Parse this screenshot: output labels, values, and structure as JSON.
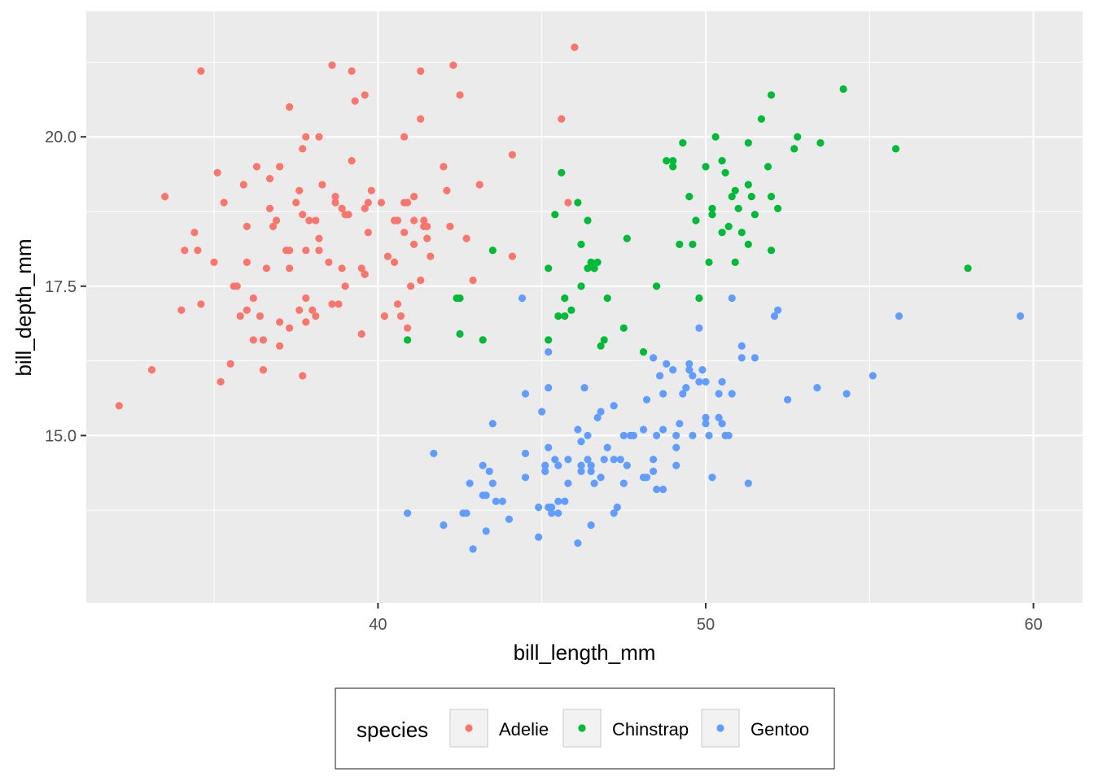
{
  "chart_data": {
    "type": "scatter",
    "xlabel": "bill_length_mm",
    "ylabel": "bill_depth_mm",
    "xlim": [
      31.1,
      61.5
    ],
    "ylim": [
      12.2,
      22.1
    ],
    "x_ticks": [
      40,
      50,
      60
    ],
    "x_tick_labels": [
      "40",
      "50",
      "60"
    ],
    "y_ticks": [
      15,
      17.5,
      20
    ],
    "y_tick_labels": [
      "15.0",
      "17.5",
      "20.0"
    ],
    "grid": true,
    "panel_background": "#ebebeb",
    "legend": {
      "title": "species",
      "position": "bottom"
    },
    "series": [
      {
        "name": "Adelie",
        "color": "#f8766d",
        "points": [
          [
            32.1,
            15.5
          ],
          [
            33.1,
            16.1
          ],
          [
            33.5,
            19.0
          ],
          [
            34.0,
            17.1
          ],
          [
            34.1,
            18.1
          ],
          [
            34.4,
            18.4
          ],
          [
            34.5,
            18.1
          ],
          [
            34.6,
            21.1
          ],
          [
            34.6,
            17.2
          ],
          [
            35.0,
            17.9
          ],
          [
            35.1,
            19.4
          ],
          [
            35.2,
            15.9
          ],
          [
            35.3,
            18.9
          ],
          [
            35.5,
            16.2
          ],
          [
            35.6,
            17.5
          ],
          [
            35.7,
            17.5
          ],
          [
            35.8,
            17.0
          ],
          [
            35.9,
            19.2
          ],
          [
            36.0,
            18.5
          ],
          [
            36.0,
            17.9
          ],
          [
            36.0,
            17.1
          ],
          [
            36.2,
            16.6
          ],
          [
            36.2,
            17.3
          ],
          [
            36.4,
            17.0
          ],
          [
            36.5,
            16.1
          ],
          [
            36.6,
            17.8
          ],
          [
            36.7,
            18.8
          ],
          [
            36.7,
            19.3
          ],
          [
            36.8,
            18.5
          ],
          [
            36.9,
            18.6
          ],
          [
            37.0,
            19.5
          ],
          [
            37.0,
            16.5
          ],
          [
            37.2,
            18.1
          ],
          [
            37.3,
            17.8
          ],
          [
            37.3,
            16.8
          ],
          [
            37.3,
            20.5
          ],
          [
            37.5,
            18.9
          ],
          [
            37.6,
            19.1
          ],
          [
            37.6,
            17.1
          ],
          [
            37.7,
            18.7
          ],
          [
            37.7,
            19.8
          ],
          [
            37.8,
            18.1
          ],
          [
            37.8,
            17.3
          ],
          [
            37.8,
            20.0
          ],
          [
            37.9,
            18.6
          ],
          [
            38.1,
            18.6
          ],
          [
            38.1,
            17.0
          ],
          [
            38.2,
            20.0
          ],
          [
            38.2,
            18.1
          ],
          [
            38.3,
            19.2
          ],
          [
            38.5,
            17.9
          ],
          [
            38.6,
            21.2
          ],
          [
            38.6,
            17.2
          ],
          [
            38.7,
            19.0
          ],
          [
            38.8,
            17.2
          ],
          [
            38.9,
            18.8
          ],
          [
            39.0,
            17.5
          ],
          [
            39.0,
            18.7
          ],
          [
            39.1,
            18.7
          ],
          [
            39.2,
            19.6
          ],
          [
            39.3,
            20.6
          ],
          [
            39.5,
            16.7
          ],
          [
            39.5,
            17.8
          ],
          [
            39.6,
            17.7
          ],
          [
            39.7,
            18.4
          ],
          [
            39.8,
            19.1
          ],
          [
            40.1,
            18.9
          ],
          [
            40.2,
            17.0
          ],
          [
            40.3,
            18.0
          ],
          [
            40.5,
            17.9
          ],
          [
            40.6,
            18.6
          ],
          [
            40.7,
            17.0
          ],
          [
            40.8,
            18.4
          ],
          [
            40.9,
            18.9
          ],
          [
            41.0,
            17.5
          ],
          [
            41.1,
            18.2
          ],
          [
            41.1,
            19.0
          ],
          [
            41.3,
            20.3
          ],
          [
            41.3,
            17.6
          ],
          [
            41.4,
            18.5
          ],
          [
            41.5,
            18.3
          ],
          [
            41.6,
            18.0
          ],
          [
            42.0,
            19.5
          ],
          [
            42.1,
            19.1
          ],
          [
            42.2,
            18.5
          ],
          [
            42.3,
            21.2
          ],
          [
            42.5,
            20.7
          ],
          [
            42.7,
            18.3
          ],
          [
            42.9,
            17.6
          ],
          [
            43.1,
            19.2
          ],
          [
            44.1,
            19.7
          ],
          [
            44.1,
            18.0
          ],
          [
            45.6,
            20.3
          ],
          [
            45.8,
            18.9
          ],
          [
            46.0,
            21.5
          ],
          [
            37.8,
            16.9
          ],
          [
            36.5,
            16.6
          ],
          [
            39.6,
            18.8
          ],
          [
            40.8,
            18.9
          ],
          [
            38.7,
            18.9
          ],
          [
            40.6,
            17.2
          ],
          [
            39.6,
            17.7
          ],
          [
            41.4,
            18.6
          ],
          [
            39.7,
            18.9
          ],
          [
            36.3,
            19.5
          ],
          [
            41.5,
            18.5
          ],
          [
            37.7,
            16.0
          ],
          [
            39.6,
            20.7
          ],
          [
            38.0,
            17.1
          ],
          [
            39.2,
            21.1
          ],
          [
            38.2,
            18.3
          ],
          [
            40.5,
            18.6
          ],
          [
            41.1,
            18.6
          ],
          [
            37.0,
            16.9
          ],
          [
            40.9,
            16.8
          ],
          [
            40.8,
            20.0
          ],
          [
            41.3,
            21.1
          ],
          [
            37.3,
            18.1
          ],
          [
            38.9,
            17.8
          ]
        ]
      },
      {
        "name": "Chinstrap",
        "color": "#00ba38",
        "points": [
          [
            40.9,
            16.6
          ],
          [
            42.4,
            17.3
          ],
          [
            42.5,
            17.3
          ],
          [
            42.5,
            16.7
          ],
          [
            43.2,
            16.6
          ],
          [
            43.5,
            18.1
          ],
          [
            45.2,
            17.8
          ],
          [
            45.2,
            16.6
          ],
          [
            45.4,
            18.7
          ],
          [
            45.5,
            17.0
          ],
          [
            45.6,
            19.4
          ],
          [
            45.7,
            17.3
          ],
          [
            45.7,
            17.0
          ],
          [
            45.9,
            17.1
          ],
          [
            46.1,
            18.9
          ],
          [
            46.2,
            17.5
          ],
          [
            46.2,
            18.2
          ],
          [
            46.4,
            18.6
          ],
          [
            46.4,
            17.8
          ],
          [
            46.5,
            17.9
          ],
          [
            46.6,
            17.8
          ],
          [
            46.7,
            17.9
          ],
          [
            46.8,
            16.5
          ],
          [
            46.9,
            16.6
          ],
          [
            47.0,
            17.3
          ],
          [
            47.5,
            16.8
          ],
          [
            47.6,
            18.3
          ],
          [
            48.1,
            16.4
          ],
          [
            48.5,
            17.5
          ],
          [
            48.8,
            19.6
          ],
          [
            49.0,
            19.5
          ],
          [
            49.2,
            18.2
          ],
          [
            49.3,
            19.9
          ],
          [
            49.5,
            19.0
          ],
          [
            49.6,
            18.2
          ],
          [
            49.7,
            18.6
          ],
          [
            49.8,
            17.3
          ],
          [
            50.0,
            19.5
          ],
          [
            50.1,
            17.9
          ],
          [
            50.2,
            18.8
          ],
          [
            50.2,
            18.7
          ],
          [
            50.3,
            20.0
          ],
          [
            50.5,
            18.4
          ],
          [
            50.5,
            19.6
          ],
          [
            50.6,
            19.4
          ],
          [
            50.7,
            18.5
          ],
          [
            50.8,
            19.0
          ],
          [
            50.9,
            19.1
          ],
          [
            50.9,
            17.9
          ],
          [
            51.0,
            18.8
          ],
          [
            51.3,
            19.2
          ],
          [
            51.3,
            18.2
          ],
          [
            51.4,
            19.0
          ],
          [
            51.3,
            19.9
          ],
          [
            51.5,
            18.7
          ],
          [
            51.7,
            20.3
          ],
          [
            51.9,
            19.5
          ],
          [
            52.0,
            18.1
          ],
          [
            52.0,
            19.0
          ],
          [
            52.0,
            20.7
          ],
          [
            52.2,
            18.8
          ],
          [
            52.7,
            19.8
          ],
          [
            52.8,
            20.0
          ],
          [
            53.5,
            19.9
          ],
          [
            54.2,
            20.8
          ],
          [
            55.8,
            19.8
          ],
          [
            58.0,
            17.8
          ],
          [
            46.6,
            17.8
          ],
          [
            49.0,
            19.6
          ],
          [
            51.1,
            18.4
          ]
        ]
      },
      {
        "name": "Gentoo",
        "color": "#619cff",
        "points": [
          [
            40.9,
            13.7
          ],
          [
            41.7,
            14.7
          ],
          [
            42.0,
            13.5
          ],
          [
            42.6,
            13.7
          ],
          [
            42.7,
            13.7
          ],
          [
            42.8,
            14.2
          ],
          [
            42.9,
            13.1
          ],
          [
            43.2,
            14.5
          ],
          [
            43.2,
            14.0
          ],
          [
            43.3,
            13.4
          ],
          [
            43.3,
            14.0
          ],
          [
            43.4,
            14.4
          ],
          [
            43.5,
            14.2
          ],
          [
            43.5,
            15.2
          ],
          [
            43.6,
            13.9
          ],
          [
            43.8,
            13.9
          ],
          [
            44.0,
            13.6
          ],
          [
            44.4,
            17.3
          ],
          [
            44.5,
            14.3
          ],
          [
            44.5,
            15.7
          ],
          [
            44.5,
            14.7
          ],
          [
            44.9,
            13.8
          ],
          [
            44.9,
            13.3
          ],
          [
            45.0,
            15.4
          ],
          [
            45.1,
            14.5
          ],
          [
            45.1,
            14.4
          ],
          [
            45.2,
            14.8
          ],
          [
            45.2,
            13.8
          ],
          [
            45.2,
            16.4
          ],
          [
            45.2,
            15.8
          ],
          [
            45.3,
            13.7
          ],
          [
            45.3,
            13.8
          ],
          [
            45.4,
            14.6
          ],
          [
            45.5,
            13.7
          ],
          [
            45.5,
            13.9
          ],
          [
            45.5,
            14.5
          ],
          [
            45.7,
            13.9
          ],
          [
            45.8,
            14.6
          ],
          [
            45.8,
            14.2
          ],
          [
            46.1,
            13.2
          ],
          [
            46.1,
            15.1
          ],
          [
            46.2,
            14.4
          ],
          [
            46.2,
            14.5
          ],
          [
            46.2,
            14.9
          ],
          [
            46.3,
            15.8
          ],
          [
            46.4,
            14.6
          ],
          [
            46.4,
            15.0
          ],
          [
            46.5,
            13.5
          ],
          [
            46.5,
            14.5
          ],
          [
            46.5,
            14.4
          ],
          [
            46.6,
            14.2
          ],
          [
            46.7,
            15.3
          ],
          [
            46.8,
            14.3
          ],
          [
            46.8,
            15.4
          ],
          [
            46.9,
            14.6
          ],
          [
            47.0,
            14.8
          ],
          [
            47.2,
            13.7
          ],
          [
            47.2,
            15.5
          ],
          [
            47.2,
            14.6
          ],
          [
            47.3,
            13.8
          ],
          [
            47.4,
            14.6
          ],
          [
            47.5,
            14.2
          ],
          [
            47.5,
            15.0
          ],
          [
            47.6,
            14.5
          ],
          [
            47.7,
            15.0
          ],
          [
            47.8,
            15.0
          ],
          [
            48.1,
            15.1
          ],
          [
            48.1,
            14.3
          ],
          [
            48.2,
            14.3
          ],
          [
            48.2,
            15.6
          ],
          [
            48.4,
            14.6
          ],
          [
            48.4,
            16.3
          ],
          [
            48.4,
            14.4
          ],
          [
            48.5,
            14.1
          ],
          [
            48.5,
            15.0
          ],
          [
            48.6,
            16.0
          ],
          [
            48.7,
            14.1
          ],
          [
            48.7,
            15.1
          ],
          [
            48.7,
            15.7
          ],
          [
            48.8,
            16.2
          ],
          [
            49.0,
            16.1
          ],
          [
            49.1,
            14.8
          ],
          [
            49.1,
            14.5
          ],
          [
            49.1,
            15.0
          ],
          [
            49.2,
            15.2
          ],
          [
            49.3,
            15.7
          ],
          [
            49.4,
            15.8
          ],
          [
            49.5,
            16.2
          ],
          [
            49.5,
            16.1
          ],
          [
            49.6,
            15.0
          ],
          [
            49.6,
            16.0
          ],
          [
            49.8,
            15.9
          ],
          [
            49.8,
            16.8
          ],
          [
            49.9,
            16.1
          ],
          [
            50.0,
            15.2
          ],
          [
            50.0,
            15.3
          ],
          [
            50.0,
            15.9
          ],
          [
            50.1,
            15.0
          ],
          [
            50.2,
            14.3
          ],
          [
            50.4,
            15.7
          ],
          [
            50.4,
            15.3
          ],
          [
            50.5,
            15.2
          ],
          [
            50.5,
            15.9
          ],
          [
            50.6,
            15.0
          ],
          [
            50.7,
            15.0
          ],
          [
            50.8,
            15.7
          ],
          [
            50.8,
            17.3
          ],
          [
            51.1,
            16.3
          ],
          [
            51.1,
            16.5
          ],
          [
            51.3,
            14.2
          ],
          [
            51.5,
            16.3
          ],
          [
            52.1,
            17.0
          ],
          [
            52.2,
            17.1
          ],
          [
            52.5,
            15.6
          ],
          [
            53.4,
            15.8
          ],
          [
            54.3,
            15.7
          ],
          [
            55.1,
            16.0
          ],
          [
            55.9,
            17.0
          ],
          [
            59.6,
            17.0
          ]
        ]
      }
    ]
  }
}
